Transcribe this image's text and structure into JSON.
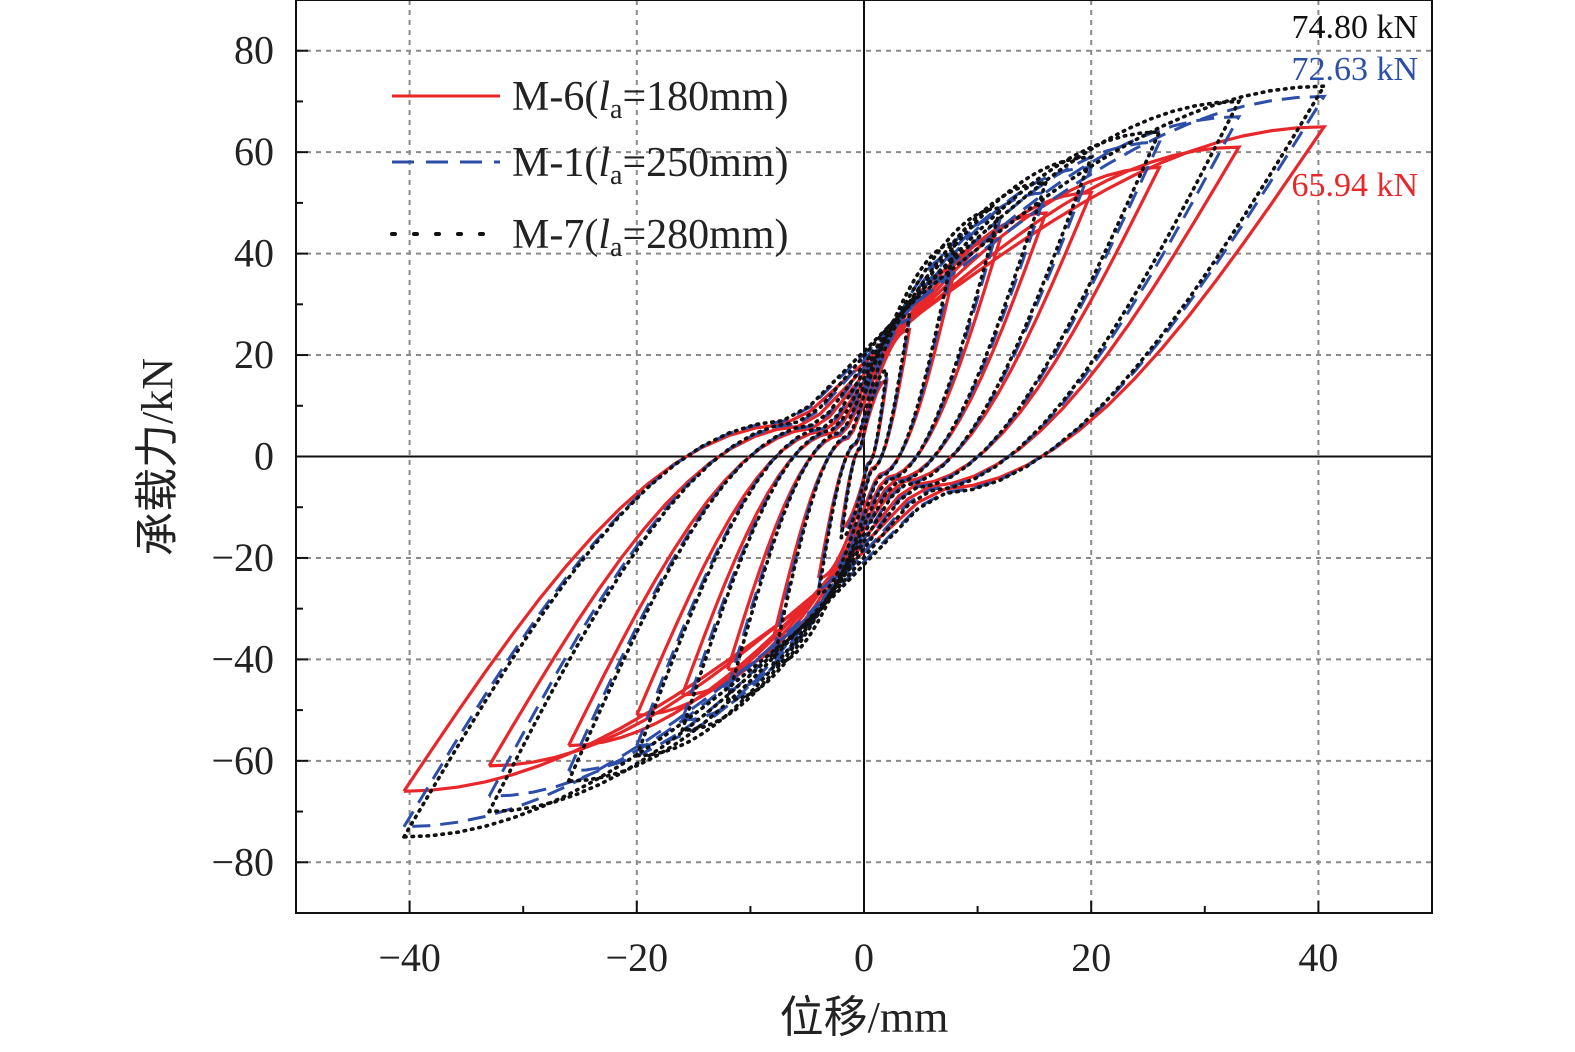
{
  "chart_data": {
    "type": "line",
    "xlabel": "位移/mm",
    "ylabel": "承载力/kN",
    "xlim": [
      -50,
      50
    ],
    "ylim": [
      -90,
      90
    ],
    "xticks": [
      -40,
      -20,
      0,
      20,
      40
    ],
    "yticks": [
      -80,
      -60,
      -40,
      -20,
      0,
      20,
      40,
      60,
      80
    ],
    "xtick_labels": [
      "−40",
      "−20",
      "0",
      "20",
      "40"
    ],
    "ytick_labels": [
      "−80",
      "−60",
      "−40",
      "−20",
      "0",
      "20",
      "40",
      "60",
      "80"
    ],
    "grid": true,
    "legend_position": "top-left",
    "legend": [
      {
        "label_pre": "M-6(",
        "label_var": "l",
        "label_sub": "a",
        "label_post": "=180mm)",
        "color": "#e8272b",
        "style": "solid"
      },
      {
        "label_pre": "M-1(",
        "label_var": "l",
        "label_sub": "a",
        "label_post": "=250mm)",
        "color": "#2c4ea8",
        "style": "dashed"
      },
      {
        "label_pre": "M-7(",
        "label_var": "l",
        "label_sub": "a",
        "label_post": "=280mm)",
        "color": "#111111",
        "style": "dotted"
      }
    ],
    "annotations": [
      {
        "text": "74.80 kN",
        "color": "#111111"
      },
      {
        "text": "72.63 kN",
        "color": "#2c4ea8"
      },
      {
        "text": "65.94 kN",
        "color": "#e8272b"
      }
    ],
    "series": [
      {
        "name": "M-6",
        "color": "#e8272b",
        "style": "solid",
        "peak_load": 65.94,
        "cycles": [
          {
            "amp": 2,
            "pos_peak": 15,
            "neg_peak": -14
          },
          {
            "amp": 4,
            "pos_peak": 25,
            "neg_peak": -24
          },
          {
            "amp": 8,
            "pos_peak": 37,
            "neg_peak": -36
          },
          {
            "amp": 12,
            "pos_peak": 43,
            "neg_peak": -42
          },
          {
            "amp": 16,
            "pos_peak": 48,
            "neg_peak": -47
          },
          {
            "amp": 20,
            "pos_peak": 52,
            "neg_peak": -51
          },
          {
            "amp": 26,
            "pos_peak": 57,
            "neg_peak": -57
          },
          {
            "amp": 33,
            "pos_peak": 61,
            "neg_peak": -61
          },
          {
            "amp": 40.5,
            "pos_peak": 65,
            "neg_peak": -66
          }
        ]
      },
      {
        "name": "M-1",
        "color": "#2c4ea8",
        "style": "dashed",
        "peak_load": 72.63,
        "cycles": [
          {
            "amp": 2,
            "pos_peak": 16,
            "neg_peak": -15
          },
          {
            "amp": 4,
            "pos_peak": 27,
            "neg_peak": -26
          },
          {
            "amp": 8,
            "pos_peak": 40,
            "neg_peak": -39
          },
          {
            "amp": 12,
            "pos_peak": 47,
            "neg_peak": -46
          },
          {
            "amp": 16,
            "pos_peak": 52,
            "neg_peak": -52
          },
          {
            "amp": 20,
            "pos_peak": 57,
            "neg_peak": -57
          },
          {
            "amp": 26,
            "pos_peak": 62,
            "neg_peak": -62
          },
          {
            "amp": 33,
            "pos_peak": 67,
            "neg_peak": -67
          },
          {
            "amp": 40.5,
            "pos_peak": 71,
            "neg_peak": -73
          }
        ]
      },
      {
        "name": "M-7",
        "color": "#111111",
        "style": "dotted",
        "peak_load": 74.8,
        "cycles": [
          {
            "amp": 2,
            "pos_peak": 17,
            "neg_peak": -16
          },
          {
            "amp": 4,
            "pos_peak": 28,
            "neg_peak": -27
          },
          {
            "amp": 8,
            "pos_peak": 42,
            "neg_peak": -41
          },
          {
            "amp": 12,
            "pos_peak": 49,
            "neg_peak": -48
          },
          {
            "amp": 16,
            "pos_peak": 54,
            "neg_peak": -54
          },
          {
            "amp": 20,
            "pos_peak": 59,
            "neg_peak": -59
          },
          {
            "amp": 26,
            "pos_peak": 64,
            "neg_peak": -64
          },
          {
            "amp": 33,
            "pos_peak": 70,
            "neg_peak": -70
          },
          {
            "amp": 40.5,
            "pos_peak": 73,
            "neg_peak": -75
          }
        ]
      }
    ]
  }
}
